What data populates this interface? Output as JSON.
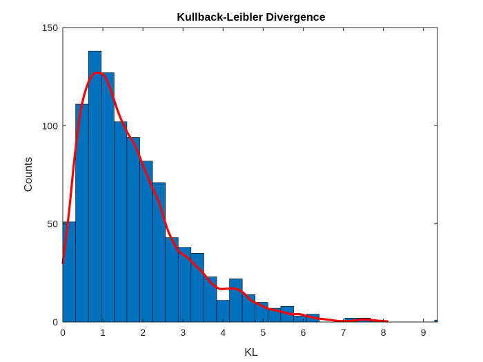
{
  "chart_data": {
    "type": "bar",
    "title": "Kullback-Leibler Divergence",
    "xlabel": "KL",
    "ylabel": "Counts",
    "xlim": [
      0,
      9.35
    ],
    "ylim": [
      0,
      150
    ],
    "xticks": [
      0,
      1,
      2,
      3,
      4,
      5,
      6,
      7,
      8,
      9
    ],
    "yticks": [
      0,
      50,
      100,
      150
    ],
    "grid": false,
    "bin_width": 0.32,
    "bins": [
      {
        "x0": 0.0,
        "x1": 0.32,
        "count": 51
      },
      {
        "x0": 0.32,
        "x1": 0.64,
        "count": 111
      },
      {
        "x0": 0.64,
        "x1": 0.96,
        "count": 138
      },
      {
        "x0": 0.96,
        "x1": 1.28,
        "count": 127
      },
      {
        "x0": 1.28,
        "x1": 1.6,
        "count": 102
      },
      {
        "x0": 1.6,
        "x1": 1.92,
        "count": 94
      },
      {
        "x0": 1.92,
        "x1": 2.24,
        "count": 82
      },
      {
        "x0": 2.24,
        "x1": 2.56,
        "count": 71
      },
      {
        "x0": 2.56,
        "x1": 2.88,
        "count": 43
      },
      {
        "x0": 2.88,
        "x1": 3.2,
        "count": 38
      },
      {
        "x0": 3.2,
        "x1": 3.52,
        "count": 35
      },
      {
        "x0": 3.52,
        "x1": 3.84,
        "count": 23
      },
      {
        "x0": 3.84,
        "x1": 4.16,
        "count": 11
      },
      {
        "x0": 4.16,
        "x1": 4.48,
        "count": 22
      },
      {
        "x0": 4.48,
        "x1": 4.8,
        "count": 14
      },
      {
        "x0": 4.8,
        "x1": 5.12,
        "count": 10
      },
      {
        "x0": 5.12,
        "x1": 5.44,
        "count": 7
      },
      {
        "x0": 5.44,
        "x1": 5.76,
        "count": 8
      },
      {
        "x0": 5.76,
        "x1": 6.08,
        "count": 3
      },
      {
        "x0": 6.08,
        "x1": 6.4,
        "count": 4
      },
      {
        "x0": 6.4,
        "x1": 6.72,
        "count": 0
      },
      {
        "x0": 6.72,
        "x1": 7.04,
        "count": 0
      },
      {
        "x0": 7.04,
        "x1": 7.36,
        "count": 2
      },
      {
        "x0": 7.36,
        "x1": 7.68,
        "count": 2
      },
      {
        "x0": 7.68,
        "x1": 8.0,
        "count": 1
      },
      {
        "x0": 8.0,
        "x1": 8.32,
        "count": 0
      },
      {
        "x0": 8.32,
        "x1": 8.64,
        "count": 0
      },
      {
        "x0": 8.64,
        "x1": 8.96,
        "count": 0
      },
      {
        "x0": 8.96,
        "x1": 9.28,
        "count": 0
      },
      {
        "x0": 9.28,
        "x1": 9.6,
        "count": 1
      }
    ],
    "density_fit": {
      "x": [
        0,
        0.15,
        0.3,
        0.45,
        0.6,
        0.75,
        0.9,
        1.05,
        1.2,
        1.4,
        1.6,
        1.8,
        2.0,
        2.2,
        2.4,
        2.6,
        2.75,
        2.9,
        3.1,
        3.3,
        3.5,
        3.7,
        3.9,
        4.1,
        4.3,
        4.5,
        4.7,
        4.9,
        5.1,
        5.3,
        5.5,
        5.7,
        5.9,
        6.1,
        6.3,
        6.5,
        6.7,
        6.9,
        7.1,
        7.3,
        7.5,
        7.7,
        7.9,
        8.1
      ],
      "y": [
        30,
        55,
        85,
        108,
        120,
        126,
        127,
        125,
        118,
        106,
        97,
        90,
        80,
        70,
        61,
        48,
        41,
        36,
        33,
        29,
        25,
        20,
        17,
        17,
        17,
        15,
        11,
        9,
        7,
        6,
        5,
        4,
        4,
        3,
        2,
        1.5,
        1,
        0.5,
        0.5,
        0.8,
        1.3,
        1.0,
        0.6,
        0.3
      ],
      "color": "#ff0000"
    },
    "bar_color": "#0072bd",
    "bar_edge_color": "#000000"
  }
}
